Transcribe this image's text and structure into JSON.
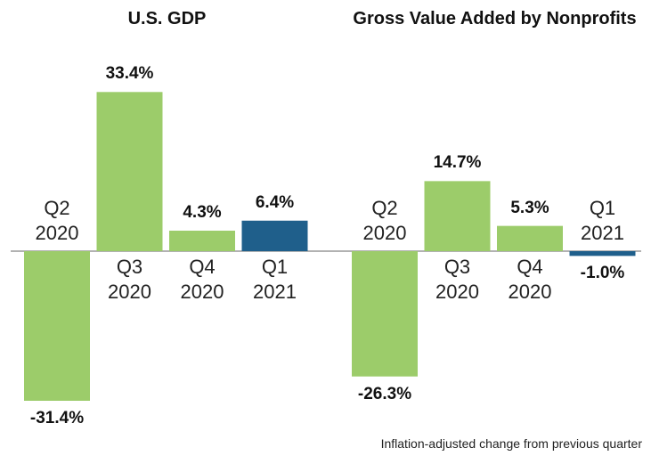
{
  "chart_data": [
    {
      "type": "bar",
      "title": "U.S. GDP",
      "categories": [
        "Q2 2020",
        "Q3 2020",
        "Q4 2020",
        "Q1 2021"
      ],
      "values": [
        -31.4,
        33.4,
        4.3,
        6.4
      ],
      "value_labels": [
        "-31.4%",
        "33.4%",
        "4.3%",
        "6.4%"
      ],
      "colors": [
        "#9ccc6a",
        "#9ccc6a",
        "#9ccc6a",
        "#1f5f8b"
      ]
    },
    {
      "type": "bar",
      "title": "Gross Value Added by Nonprofits",
      "categories": [
        "Q2 2020",
        "Q3 2020",
        "Q4 2020",
        "Q1 2021"
      ],
      "values": [
        -26.3,
        14.7,
        5.3,
        -1.0
      ],
      "value_labels": [
        "-26.3%",
        "14.7%",
        "5.3%",
        "-1.0%"
      ],
      "colors": [
        "#9ccc6a",
        "#9ccc6a",
        "#9ccc6a",
        "#1f5f8b"
      ]
    }
  ],
  "note": "Inflation-adjusted change from previous quarter"
}
